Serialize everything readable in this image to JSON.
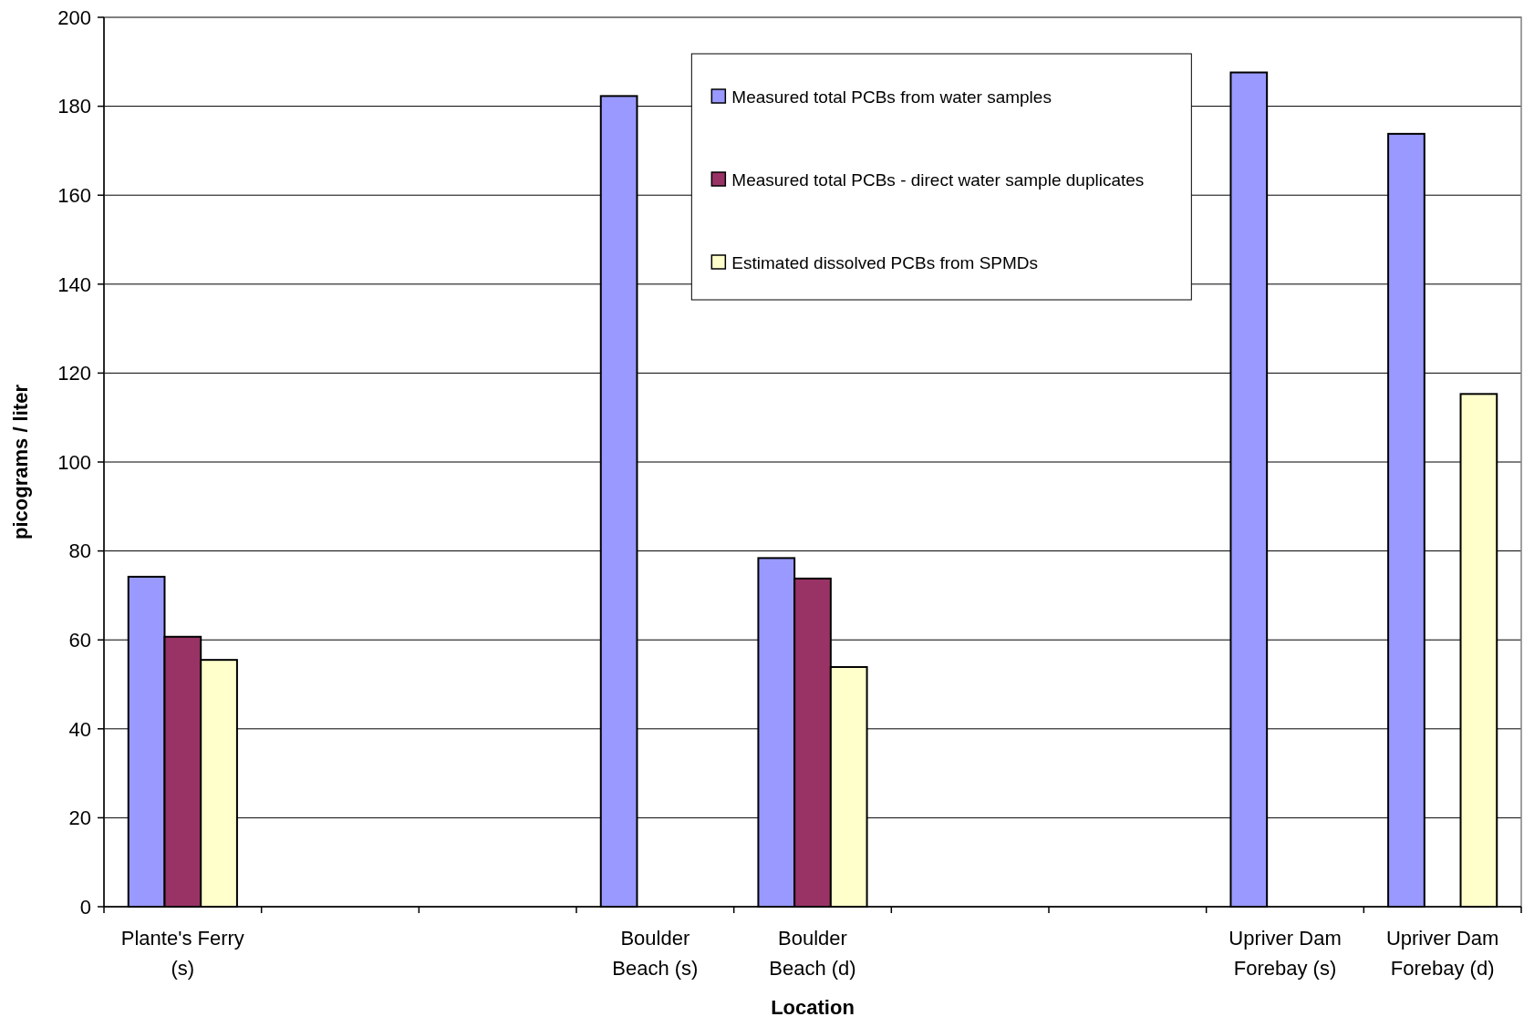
{
  "chart_data": {
    "type": "bar",
    "xlabel": "Location",
    "ylabel": "picograms / liter",
    "categories": [
      "Plante's Ferry\n(s)",
      null,
      null,
      "Boulder\nBeach (s)",
      "Boulder\nBeach (d)",
      null,
      null,
      "Upriver Dam\nForebay (s)",
      "Upriver Dam\nForebay (d)"
    ],
    "series": [
      {
        "name": "Measured total PCBs from water samples",
        "color": "#9999ff",
        "values": [
          74.2,
          null,
          null,
          182.3,
          78.4,
          null,
          null,
          187.6,
          173.8
        ]
      },
      {
        "name": "Measured total PCBs - direct water sample duplicates",
        "color": "#993366",
        "values": [
          60.7,
          null,
          null,
          null,
          73.8,
          null,
          null,
          null,
          null
        ]
      },
      {
        "name": "Estimated dissolved PCBs from SPMDs",
        "color": "#ffffcc",
        "values": [
          55.5,
          null,
          null,
          null,
          53.9,
          null,
          null,
          null,
          115.3
        ]
      }
    ],
    "ylim": [
      0,
      200
    ],
    "yticks": [
      0,
      20,
      40,
      60,
      80,
      100,
      120,
      140,
      160,
      180,
      200
    ],
    "grid": "y",
    "legend": "top"
  }
}
